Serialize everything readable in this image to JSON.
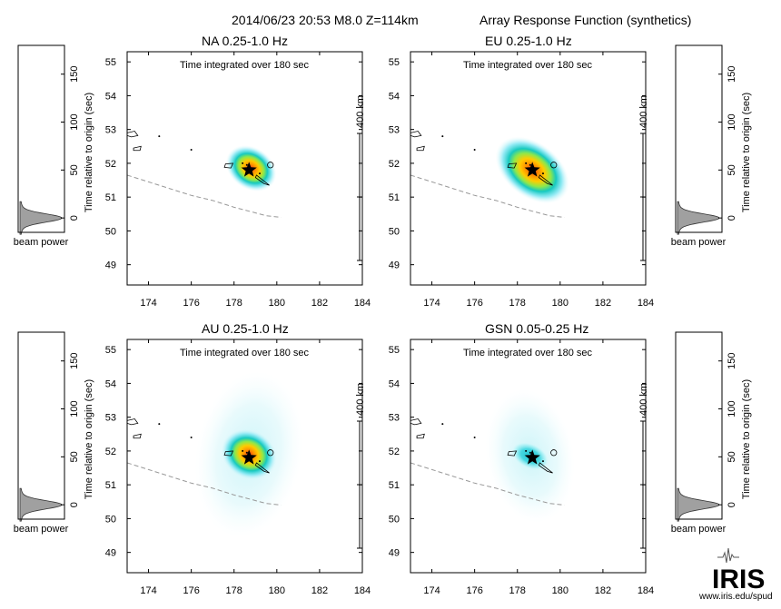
{
  "header": {
    "event": "2014/06/23 20:53  M8.0  Z=114km",
    "title": "Array Response Function (synthetics)"
  },
  "colors": {
    "background": "#ffffff",
    "axes": "#000000",
    "trench": "#999999",
    "beam_fill": "#a0a0a0",
    "hot": "#ffcc00",
    "cool": "#7fe6f2",
    "star": "#000000"
  },
  "chart_data": [
    {
      "type": "heatmap",
      "title": "NA  0.25-1.0 Hz",
      "subtitle": "Time integrated over 180 sec",
      "x_ticks": [
        174,
        176,
        178,
        180,
        182,
        184
      ],
      "y_ticks": [
        49,
        50,
        51,
        52,
        53,
        54,
        55
      ],
      "xlim": [
        173,
        184
      ],
      "ylim": [
        48.4,
        55.3
      ],
      "epicenter": {
        "lon": 178.7,
        "lat": 51.8
      },
      "peak": {
        "lon": 178.8,
        "lat": 51.85,
        "intensity": "compact"
      },
      "scale_bar": "400 km"
    },
    {
      "type": "heatmap",
      "title": "EU  0.25-1.0 Hz",
      "subtitle": "Time integrated over 180 sec",
      "x_ticks": [
        174,
        176,
        178,
        180,
        182,
        184
      ],
      "y_ticks": [
        49,
        50,
        51,
        52,
        53,
        54,
        55
      ],
      "xlim": [
        173,
        184
      ],
      "ylim": [
        48.4,
        55.3
      ],
      "epicenter": {
        "lon": 178.7,
        "lat": 51.8
      },
      "peak": {
        "lon": 178.7,
        "lat": 51.8,
        "intensity": "elongated"
      },
      "scale_bar": "400 km"
    },
    {
      "type": "heatmap",
      "title": "AU  0.25-1.0 Hz",
      "subtitle": "Time integrated over 180 sec",
      "x_ticks": [
        174,
        176,
        178,
        180,
        182,
        184
      ],
      "y_ticks": [
        49,
        50,
        51,
        52,
        53,
        54,
        55
      ],
      "xlim": [
        173,
        184
      ],
      "ylim": [
        48.4,
        55.3
      ],
      "epicenter": {
        "lon": 178.7,
        "lat": 51.8
      },
      "peak": {
        "lon": 178.7,
        "lat": 51.9,
        "intensity": "broad"
      },
      "scale_bar": "400 km"
    },
    {
      "type": "heatmap",
      "title": "GSN  0.05-0.25 Hz",
      "subtitle": "Time integrated over 180 sec",
      "x_ticks": [
        174,
        176,
        178,
        180,
        182,
        184
      ],
      "y_ticks": [
        49,
        50,
        51,
        52,
        53,
        54,
        55
      ],
      "xlim": [
        173,
        184
      ],
      "ylim": [
        48.4,
        55.3
      ],
      "epicenter": {
        "lon": 178.7,
        "lat": 51.8
      },
      "peak": {
        "lon": 178.6,
        "lat": 51.85,
        "intensity": "weak"
      },
      "scale_bar": "400 km"
    }
  ],
  "beam_panels": [
    {
      "label": "beam power",
      "ylabel": "Time relative to origin (sec)",
      "y_ticks": [
        0,
        50,
        100,
        150
      ],
      "ylim": [
        -15,
        180
      ],
      "peak_time": 0,
      "side": "left"
    },
    {
      "label": "beam power",
      "ylabel": "Time relative to origin (sec)",
      "y_ticks": [
        0,
        50,
        100,
        150
      ],
      "ylim": [
        -15,
        180
      ],
      "peak_time": 0,
      "side": "right"
    },
    {
      "label": "beam power",
      "ylabel": "Time relative to origin (sec)",
      "y_ticks": [
        0,
        50,
        100,
        150
      ],
      "ylim": [
        -15,
        180
      ],
      "peak_time": 0,
      "side": "left"
    },
    {
      "label": "beam power",
      "ylabel": "Time relative to origin (sec)",
      "y_ticks": [
        0,
        50,
        100,
        150
      ],
      "ylim": [
        -15,
        180
      ],
      "peak_time": 0,
      "side": "right"
    }
  ],
  "logo": {
    "text": "IRIS",
    "url": "www.iris.edu/spud"
  }
}
